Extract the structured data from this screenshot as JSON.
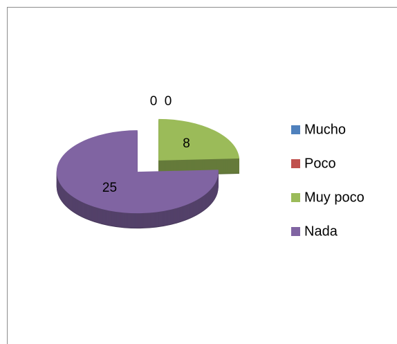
{
  "chart_data": {
    "type": "pie",
    "three_d": true,
    "exploded": true,
    "categories": [
      "Mucho",
      "Poco",
      "Muy poco",
      "Nada"
    ],
    "values": [
      0,
      0,
      8,
      25
    ],
    "colors": [
      "#4f81bd",
      "#c0504d",
      "#9bbb59",
      "#8064a2"
    ],
    "legend": "right"
  }
}
